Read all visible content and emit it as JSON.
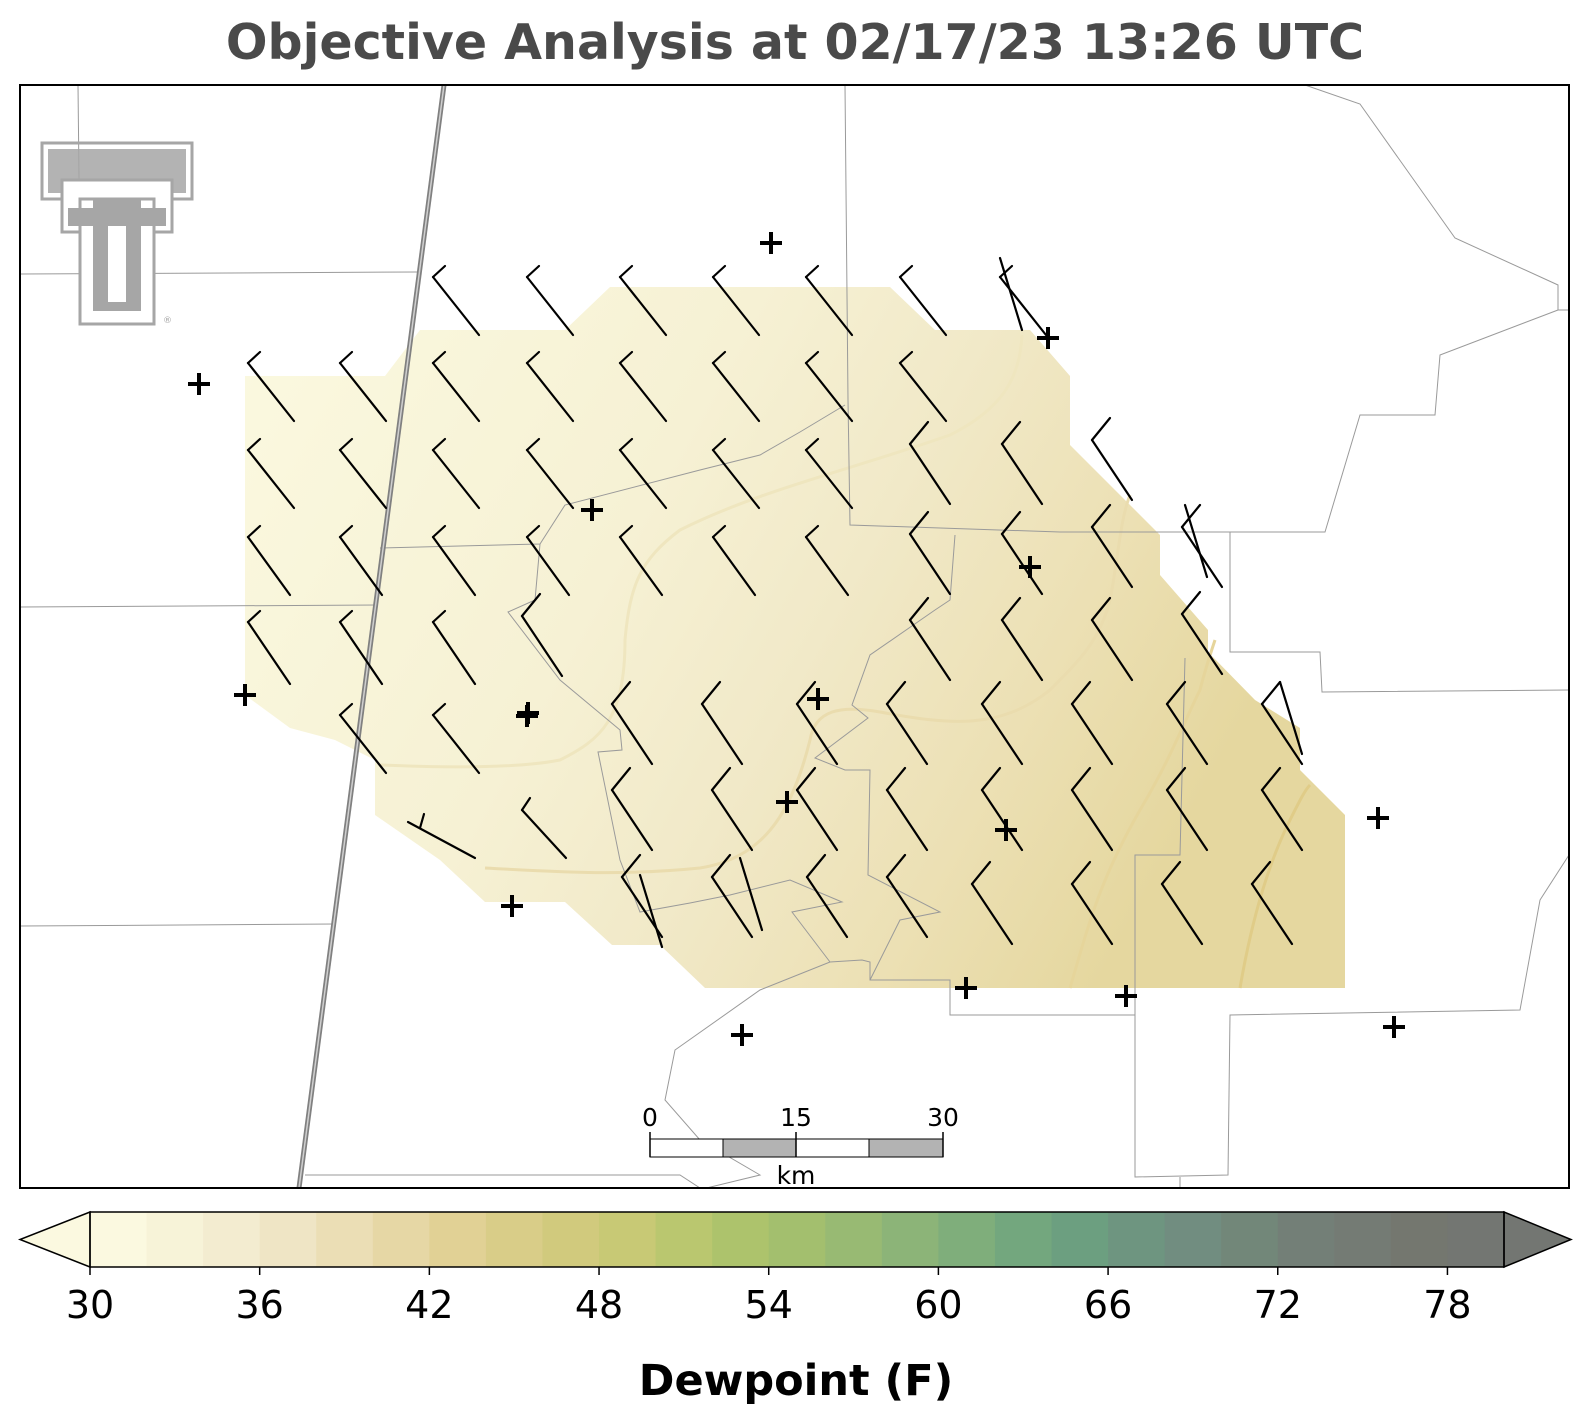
{
  "title": "Objective Analysis at 02/17/23 13:26 UTC",
  "colorbar": {
    "label": "Dewpoint (F)",
    "min": 30,
    "max": 80,
    "step": 2,
    "ticks": [
      "30",
      "36",
      "42",
      "48",
      "54",
      "60",
      "66",
      "72",
      "78"
    ],
    "extend": "both",
    "colors": [
      "#fbf9e0",
      "#f7f3d8",
      "#f3ecd0",
      "#efe5c5",
      "#ebdeb5",
      "#e6d7a5",
      "#e1d195",
      "#d9cd88",
      "#d1ca7d",
      "#c8c975",
      "#bac76f",
      "#adc36c",
      "#a3bf6e",
      "#98ba73",
      "#8cb478",
      "#7fae7b",
      "#73a77e",
      "#6c9f80",
      "#6e9580",
      "#718d80",
      "#728779",
      "#737f77",
      "#747b74",
      "#74776f",
      "#737672"
    ]
  },
  "scale_bar": {
    "labels": [
      "0",
      "15",
      "30"
    ],
    "unit": "km"
  },
  "logo": {
    "name": "double-t-logo",
    "mark": "®",
    "color": "#a6a6a6"
  },
  "field": {
    "variable": "Dewpoint (F)",
    "range_shown": [
      31,
      39
    ],
    "gradient": "increasing toward southeast"
  },
  "wind_barbs": {
    "description": "gridded analysis wind barbs, mostly northwesterly",
    "color": "#000000"
  },
  "stations": {
    "marker": "+",
    "color": "#000000",
    "count": 17
  },
  "map": {
    "boundary_color": "#9a9a9a",
    "state_line_color": "#7f7f7f",
    "frame_color": "#000000"
  }
}
